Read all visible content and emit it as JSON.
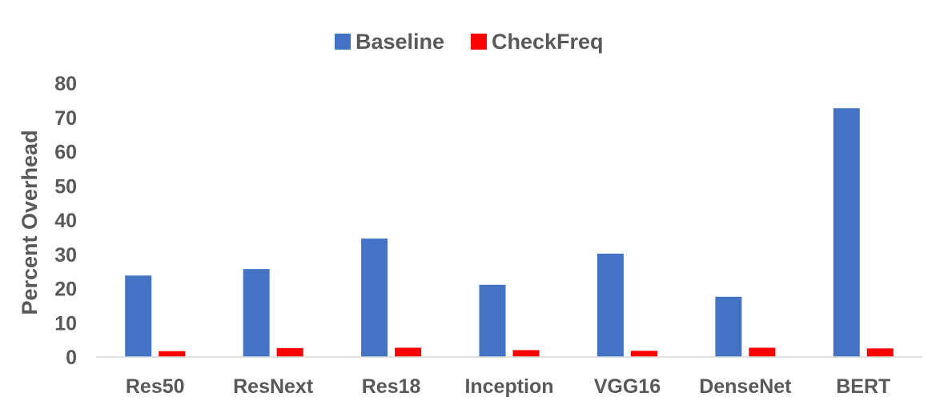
{
  "chart_data": {
    "type": "bar",
    "title": "",
    "xlabel": "",
    "ylabel": "Percent Overhead",
    "categories": [
      "Res50",
      "ResNext",
      "Res18",
      "Inception",
      "VGG16",
      "DenseNet",
      "BERT"
    ],
    "series": [
      {
        "name": "Baseline",
        "color": "#4472c4",
        "values": [
          23.8,
          25.7,
          34.6,
          21.1,
          30.2,
          17.6,
          72.7
        ]
      },
      {
        "name": "CheckFreq",
        "color": "#ff0000",
        "values": [
          1.7,
          2.6,
          2.7,
          2.0,
          1.8,
          2.7,
          2.5
        ]
      }
    ],
    "ylim": [
      0,
      80
    ],
    "yticks": [
      "0",
      "10",
      "20",
      "30",
      "40",
      "50",
      "60",
      "70",
      "80"
    ],
    "grid": false,
    "legend_position": "top-center"
  }
}
